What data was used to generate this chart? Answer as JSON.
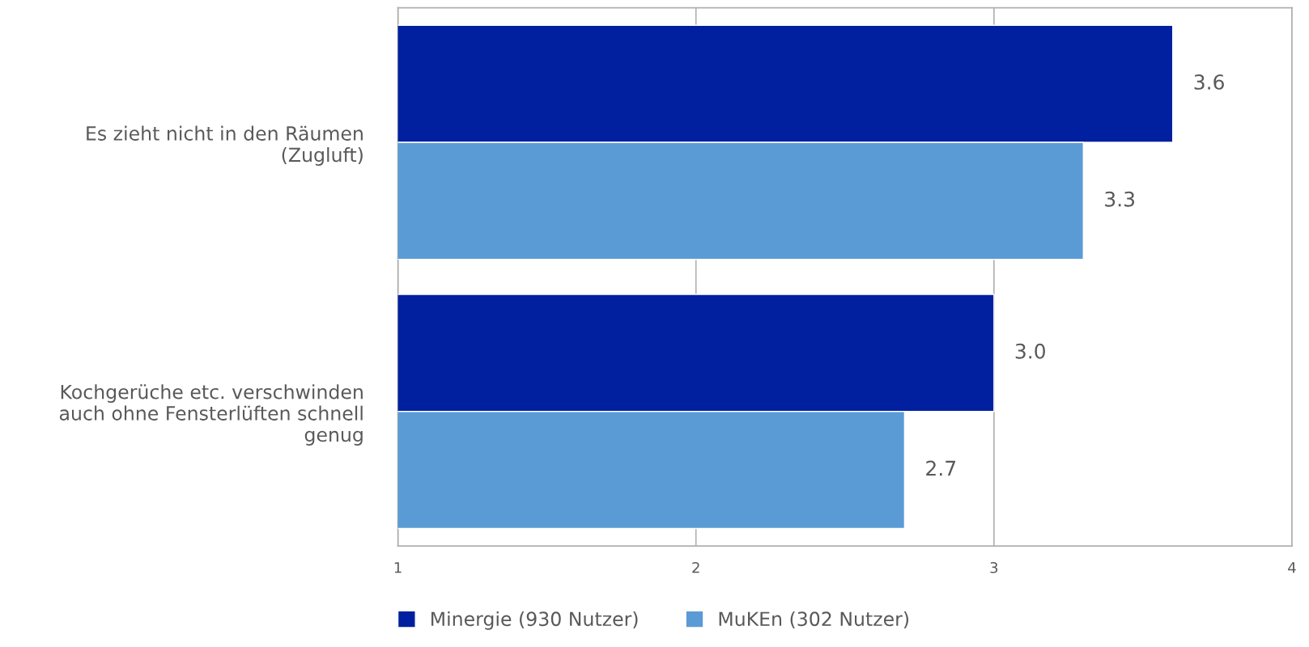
{
  "chart_data": {
    "type": "bar",
    "orientation": "horizontal",
    "categories": [
      "Es zieht nicht in den Räumen\n(Zugluft)",
      "Kochgerüche etc. verschwinden\nauch ohne Fensterlüften schnell\ngenug"
    ],
    "series": [
      {
        "name": "Minergie (930 Nutzer)",
        "color": "#00209f",
        "values": [
          3.6,
          3.0
        ],
        "value_labels": [
          "3.6",
          "3.0"
        ]
      },
      {
        "name": "MuKEn (302 Nutzer)",
        "color": "#5b9bd5",
        "values": [
          3.3,
          2.7
        ],
        "value_labels": [
          "3.3",
          "2.7"
        ]
      }
    ],
    "xlim": [
      1,
      4
    ],
    "xticks": [
      1,
      2,
      3,
      4
    ],
    "grid": "x",
    "legend": "bottom"
  }
}
